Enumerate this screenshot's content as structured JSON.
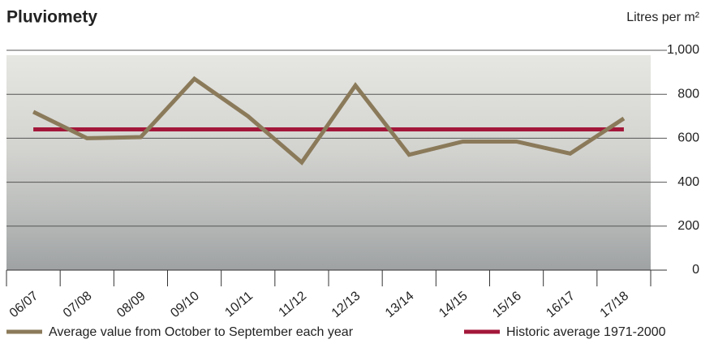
{
  "chart_data": {
    "type": "line",
    "title": "Pluviomety",
    "y_label": "Litres per m²",
    "categories": [
      "06/07",
      "07/08",
      "08/09",
      "09/10",
      "10/11",
      "11/12",
      "12/13",
      "13/14",
      "14/15",
      "15/16",
      "16/17",
      "17/18"
    ],
    "series": [
      {
        "name": "Average value from October to September each year",
        "color": "#8b7a5a",
        "values": [
          720,
          600,
          605,
          870,
          700,
          490,
          840,
          525,
          585,
          585,
          530,
          690
        ]
      },
      {
        "name": "Historic average 1971-2000",
        "color": "#a3173a",
        "values": [
          640,
          640,
          640,
          640,
          640,
          640,
          640,
          640,
          640,
          640,
          640,
          640
        ]
      }
    ],
    "ylim": [
      0,
      1000
    ],
    "yticks": [
      0,
      200,
      400,
      600,
      800,
      {
        "value": 1000,
        "label": "1,000"
      }
    ],
    "grid": true
  }
}
